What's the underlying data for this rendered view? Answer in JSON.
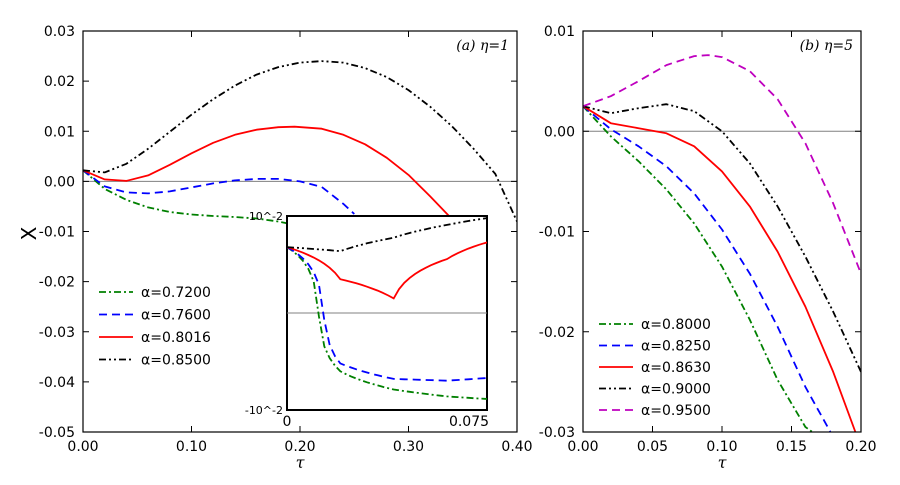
{
  "chart_data": [
    {
      "type": "line",
      "panel_label": "(a) η=1",
      "xlabel": "τ",
      "ylabel": "X",
      "xlim": [
        0,
        0.4
      ],
      "ylim": [
        -0.05,
        0.03
      ],
      "xticks": [
        "0.00",
        "0.10",
        "0.20",
        "0.30",
        "0.40"
      ],
      "yticks": [
        "-0.05",
        "-0.04",
        "-0.03",
        "-0.02",
        "-0.01",
        "0.00",
        "0.01",
        "0.02",
        "0.03"
      ],
      "reference_line_y": 0,
      "legend_position": "lower-left",
      "series": [
        {
          "name": "α=0.7200",
          "color": "#008000",
          "style": "dashdot",
          "x": [
            0.0,
            0.02,
            0.04,
            0.06,
            0.08,
            0.1,
            0.12,
            0.14,
            0.16,
            0.18,
            0.2,
            0.22,
            0.24,
            0.26,
            0.28,
            0.3,
            0.32
          ],
          "y": [
            0.0022,
            -0.0015,
            -0.0037,
            -0.0052,
            -0.0061,
            -0.0066,
            -0.0069,
            -0.0071,
            -0.0074,
            -0.008,
            -0.0089,
            -0.0103,
            -0.012,
            -0.0142,
            -0.017,
            -0.0205,
            -0.025
          ]
        },
        {
          "name": "α=0.7600",
          "color": "#0000ff",
          "style": "dashed",
          "x": [
            0.0,
            0.02,
            0.04,
            0.06,
            0.08,
            0.1,
            0.12,
            0.14,
            0.16,
            0.18,
            0.2,
            0.22,
            0.24,
            0.25
          ],
          "y": [
            0.0022,
            -0.001,
            -0.0022,
            -0.0024,
            -0.002,
            -0.0012,
            -0.0004,
            0.0002,
            0.0005,
            0.0005,
            0.0,
            -0.0011,
            -0.0045,
            -0.0065
          ]
        },
        {
          "name": "α=0.8016",
          "color": "#ff0000",
          "style": "solid",
          "x": [
            0.0,
            0.02,
            0.04,
            0.06,
            0.08,
            0.1,
            0.12,
            0.14,
            0.16,
            0.18,
            0.195,
            0.22,
            0.24,
            0.26,
            0.28,
            0.3,
            0.32,
            0.34
          ],
          "y": [
            0.0022,
            0.0004,
            0.0001,
            0.0012,
            0.0033,
            0.0056,
            0.0077,
            0.0093,
            0.0103,
            0.0108,
            0.0109,
            0.0105,
            0.0093,
            0.0074,
            0.0047,
            0.0013,
            -0.003,
            -0.0075
          ]
        },
        {
          "name": "α=0.8500",
          "color": "#000000",
          "style": "dashdotdot",
          "x": [
            0.0,
            0.02,
            0.04,
            0.06,
            0.08,
            0.1,
            0.12,
            0.14,
            0.16,
            0.18,
            0.2,
            0.22,
            0.24,
            0.26,
            0.28,
            0.3,
            0.32,
            0.34,
            0.36,
            0.38,
            0.4
          ],
          "y": [
            0.0022,
            0.0018,
            0.0035,
            0.0065,
            0.0099,
            0.0133,
            0.0164,
            0.0191,
            0.0213,
            0.0228,
            0.0237,
            0.024,
            0.0237,
            0.0226,
            0.0208,
            0.0182,
            0.0149,
            0.011,
            0.0065,
            0.0015,
            -0.008
          ]
        }
      ],
      "inset": {
        "xlim": [
          0,
          0.075
        ],
        "ylim": [
          -0.01,
          0.01
        ],
        "x_tick_labels": [
          "0",
          "0.075"
        ],
        "y_tick_labels": [
          "10^-2",
          "-10^-2"
        ],
        "reference_line_y": 0
      }
    },
    {
      "type": "line",
      "panel_label": "(b) η=5",
      "xlabel": "τ",
      "xlim": [
        0,
        0.2
      ],
      "ylim": [
        -0.03,
        0.01
      ],
      "xticks": [
        "0.00",
        "0.05",
        "0.10",
        "0.15",
        "0.20"
      ],
      "yticks": [
        "-0.03",
        "-0.02",
        "-0.01",
        "0.00",
        "0.01"
      ],
      "reference_line_y": 0,
      "legend_position": "lower-left",
      "series": [
        {
          "name": "α=0.8000",
          "color": "#008000",
          "style": "dashdot",
          "x": [
            0.0,
            0.02,
            0.04,
            0.06,
            0.08,
            0.1,
            0.12,
            0.14,
            0.16,
            0.165
          ],
          "y": [
            0.0025,
            -0.0005,
            -0.003,
            -0.0058,
            -0.0092,
            -0.0135,
            -0.0188,
            -0.0248,
            -0.0295,
            -0.03
          ]
        },
        {
          "name": "α=0.8250",
          "color": "#0000ff",
          "style": "dashed",
          "x": [
            0.0,
            0.02,
            0.04,
            0.06,
            0.08,
            0.1,
            0.12,
            0.14,
            0.16,
            0.178
          ],
          "y": [
            0.0025,
            0.0002,
            -0.0015,
            -0.0035,
            -0.0062,
            -0.0098,
            -0.0142,
            -0.0195,
            -0.0255,
            -0.03
          ]
        },
        {
          "name": "α=0.8630",
          "color": "#ff0000",
          "style": "solid",
          "x": [
            0.0,
            0.02,
            0.04,
            0.06,
            0.08,
            0.1,
            0.12,
            0.14,
            0.16,
            0.18,
            0.196
          ],
          "y": [
            0.0025,
            0.0008,
            0.0003,
            -0.0002,
            -0.0015,
            -0.004,
            -0.0075,
            -0.012,
            -0.0175,
            -0.024,
            -0.03
          ]
        },
        {
          "name": "α=0.9000",
          "color": "#000000",
          "style": "dashdotdot",
          "x": [
            0.0,
            0.02,
            0.04,
            0.06,
            0.08,
            0.1,
            0.12,
            0.14,
            0.16,
            0.18,
            0.2
          ],
          "y": [
            0.0025,
            0.0018,
            0.0023,
            0.0027,
            0.002,
            0.0,
            -0.0032,
            -0.0075,
            -0.0125,
            -0.018,
            -0.024
          ]
        },
        {
          "name": "α=0.9500",
          "color": "#bf00bf",
          "style": "dashed",
          "x": [
            0.0,
            0.02,
            0.04,
            0.06,
            0.08,
            0.09,
            0.1,
            0.12,
            0.14,
            0.16,
            0.18,
            0.2
          ],
          "y": [
            0.0025,
            0.0035,
            0.005,
            0.0066,
            0.0075,
            0.0076,
            0.0074,
            0.006,
            0.0032,
            -0.0012,
            -0.0072,
            -0.0142
          ]
        }
      ]
    }
  ]
}
